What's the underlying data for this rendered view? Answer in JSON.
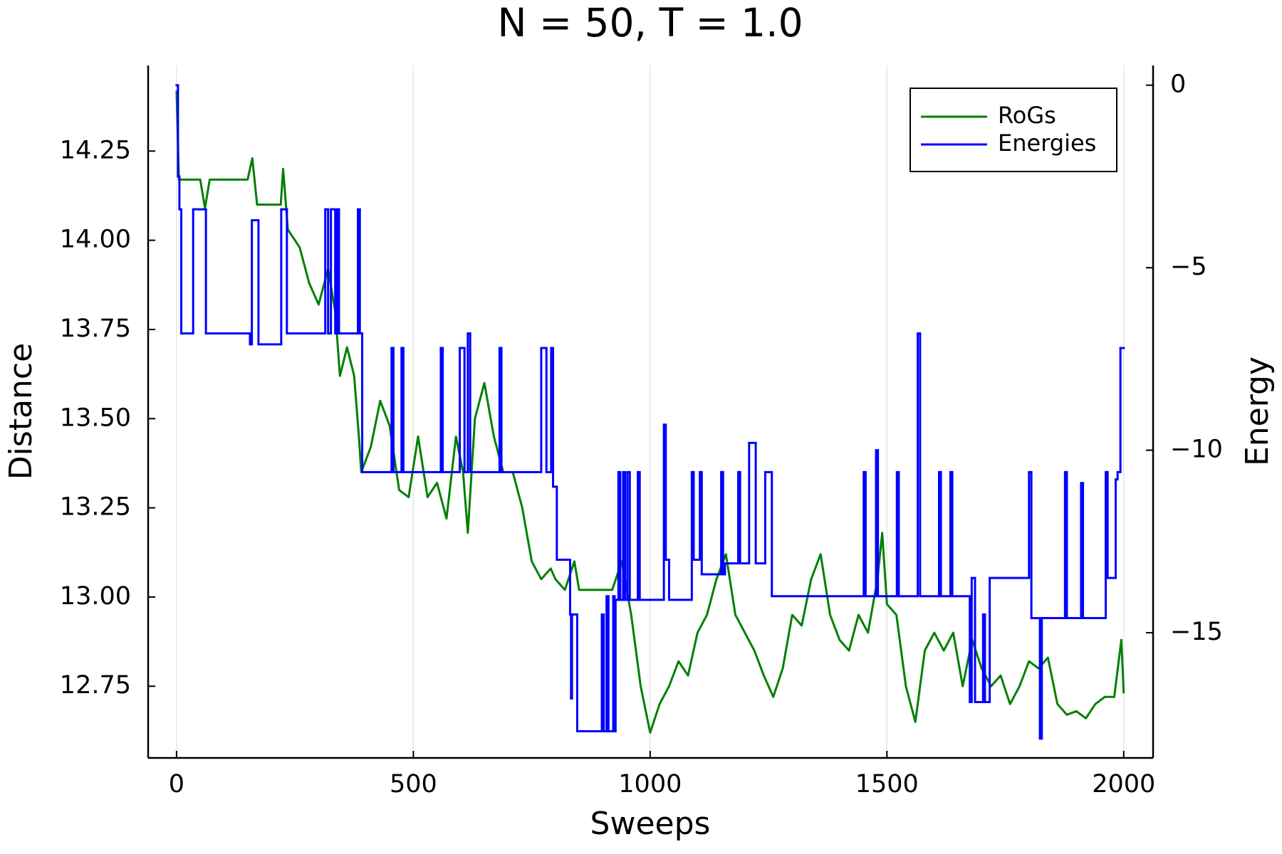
{
  "chart_data": {
    "type": "line",
    "title": "N = 50, T = 1.0",
    "xlabel": "Sweeps",
    "ylabel": "Distance",
    "y2label": "Energy",
    "xlim": [
      -60,
      2062
    ],
    "xticks": [
      0,
      500,
      1000,
      1500,
      2000
    ],
    "ylim": [
      12.549,
      14.49
    ],
    "yticks": [
      12.75,
      {
        "value": 13,
        "label": "13.00"
      },
      13.25,
      {
        "value": 13.5,
        "label": "13.50"
      },
      13.75,
      {
        "value": 14,
        "label": "14.00"
      },
      14.25
    ],
    "y2lim": [
      -18.43,
      0.54
    ],
    "y2ticks": [
      0,
      {
        "value": -5,
        "label": "−5"
      },
      {
        "value": -10,
        "label": "−10"
      },
      {
        "value": -15,
        "label": "−15"
      }
    ],
    "xgrid": true,
    "legend": "upper right",
    "series": [
      {
        "name": "RoGs",
        "color": "#008000",
        "step": false,
        "x": [
          0,
          5,
          50,
          60,
          70,
          150,
          160,
          170,
          220,
          225,
          235,
          260,
          280,
          300,
          320,
          335,
          345,
          360,
          375,
          385,
          390,
          410,
          430,
          450,
          470,
          490,
          510,
          530,
          550,
          570,
          590,
          605,
          615,
          630,
          650,
          670,
          690,
          710,
          730,
          750,
          770,
          790,
          800,
          820,
          840,
          850,
          920,
          940,
          960,
          980,
          1000,
          1020,
          1040,
          1060,
          1080,
          1100,
          1120,
          1140,
          1160,
          1180,
          1200,
          1220,
          1240,
          1260,
          1280,
          1300,
          1320,
          1340,
          1360,
          1380,
          1400,
          1420,
          1440,
          1460,
          1480,
          1490,
          1500,
          1520,
          1540,
          1560,
          1580,
          1600,
          1620,
          1640,
          1660,
          1680,
          1700,
          1720,
          1740,
          1760,
          1780,
          1800,
          1820,
          1840,
          1860,
          1880,
          1900,
          1920,
          1940,
          1960,
          1980,
          1995,
          2000
        ],
        "values": [
          14.42,
          14.17,
          14.17,
          14.09,
          14.17,
          14.17,
          14.23,
          14.1,
          14.1,
          14.2,
          14.03,
          13.98,
          13.88,
          13.82,
          13.92,
          13.8,
          13.62,
          13.7,
          13.62,
          13.45,
          13.35,
          13.42,
          13.55,
          13.48,
          13.3,
          13.28,
          13.45,
          13.28,
          13.32,
          13.22,
          13.45,
          13.35,
          13.18,
          13.5,
          13.6,
          13.45,
          13.35,
          13.35,
          13.25,
          13.1,
          13.05,
          13.08,
          13.05,
          13.02,
          13.1,
          13.02,
          13.02,
          13.1,
          12.95,
          12.75,
          12.62,
          12.7,
          12.75,
          12.82,
          12.78,
          12.9,
          12.95,
          13.05,
          13.12,
          12.95,
          12.9,
          12.85,
          12.78,
          12.72,
          12.8,
          12.95,
          12.92,
          13.05,
          13.12,
          12.95,
          12.88,
          12.85,
          12.95,
          12.9,
          13.05,
          13.18,
          12.98,
          12.95,
          12.75,
          12.65,
          12.85,
          12.9,
          12.85,
          12.9,
          12.75,
          12.88,
          12.8,
          12.75,
          12.78,
          12.7,
          12.75,
          12.82,
          12.8,
          12.83,
          12.7,
          12.67,
          12.68,
          12.66,
          12.7,
          12.72,
          12.72,
          12.88,
          12.73
        ]
      },
      {
        "name": "Energies",
        "color": "#0000ff",
        "axis": "y2",
        "step": true,
        "x": [
          0,
          3,
          6,
          10,
          35,
          62,
          155,
          159,
          173,
          221,
          233,
          314,
          320,
          326,
          335,
          339,
          343,
          383,
          387,
          392,
          454,
          458,
          475,
          479,
          558,
          562,
          598,
          608,
          615,
          620,
          682,
          686,
          770,
          781,
          791,
          795,
          803,
          831,
          833,
          835,
          846,
          898,
          902,
          908,
          912,
          922,
          925,
          927,
          933,
          937,
          943,
          947,
          952,
          957,
          974,
          978,
          1029,
          1033,
          1040,
          1088,
          1092,
          1105,
          1109,
          1150,
          1154,
          1158,
          1186,
          1190,
          1209,
          1223,
          1243,
          1257,
          1451,
          1455,
          1477,
          1481,
          1521,
          1525,
          1565,
          1570,
          1610,
          1614,
          1634,
          1638,
          1675,
          1679,
          1686,
          1703,
          1707,
          1717,
          1800,
          1805,
          1823,
          1827,
          1876,
          1880,
          1910,
          1914,
          1962,
          1966,
          1983,
          1987,
          1993,
          2000
        ],
        "values": [
          0,
          -2.5,
          -3.4,
          -6.8,
          -3.4,
          -6.8,
          -7.1,
          -3.7,
          -7.1,
          -3.4,
          -6.8,
          -3.4,
          -6.8,
          -3.4,
          -6.8,
          -3.4,
          -6.8,
          -3.4,
          -6.8,
          -10.6,
          -7.2,
          -10.6,
          -7.2,
          -10.6,
          -7.2,
          -10.6,
          -7.2,
          -10.6,
          -6.8,
          -10.6,
          -7.2,
          -10.6,
          -7.2,
          -10.6,
          -7.2,
          -11.0,
          -13.0,
          -14.5,
          -16.8,
          -14.5,
          -17.7,
          -14.5,
          -17.7,
          -14.0,
          -17.7,
          -14.0,
          -17.7,
          -14.1,
          -10.6,
          -14.1,
          -10.6,
          -14.1,
          -10.6,
          -14.1,
          -10.6,
          -14.1,
          -9.3,
          -13.0,
          -14.1,
          -10.6,
          -13.0,
          -10.6,
          -13.4,
          -10.6,
          -13.4,
          -13.1,
          -10.6,
          -13.1,
          -9.8,
          -13.1,
          -10.6,
          -14.0,
          -10.6,
          -14.0,
          -10.0,
          -14.0,
          -10.6,
          -14.0,
          -6.8,
          -14.0,
          -10.6,
          -14.0,
          -10.6,
          -14.0,
          -16.9,
          -13.5,
          -16.9,
          -14.5,
          -16.9,
          -13.5,
          -10.6,
          -14.6,
          -17.9,
          -14.6,
          -10.6,
          -14.6,
          -10.9,
          -14.6,
          -10.6,
          -13.5,
          -10.8,
          -10.6,
          -7.2,
          -7.2
        ]
      }
    ]
  }
}
